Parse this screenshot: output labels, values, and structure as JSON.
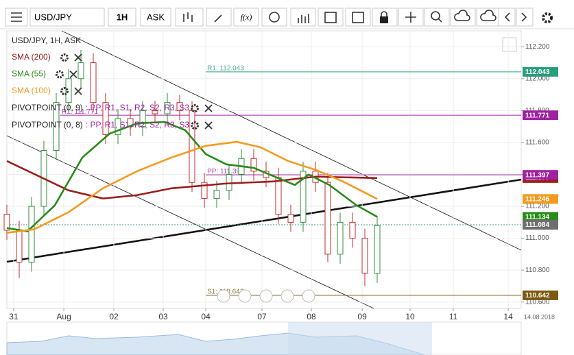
{
  "toolbar": {
    "symbol": "USD/JPY",
    "interval": "1H",
    "side": "ASK",
    "fx": "f(x)"
  },
  "chart_data": {
    "type": "candlestick",
    "title": "USD/JPY, 1H, ASK",
    "xlim": [
      0,
      250
    ],
    "xticks": [
      {
        "value": 3.3,
        "label": "31"
      },
      {
        "value": 27.7,
        "label": "Aug"
      },
      {
        "value": 52,
        "label": "02"
      },
      {
        "value": 76,
        "label": "03"
      },
      {
        "value": 96.7,
        "label": "04"
      },
      {
        "value": 124,
        "label": "07"
      },
      {
        "value": 148,
        "label": "08"
      },
      {
        "value": 172.7,
        "label": "09"
      },
      {
        "value": 196,
        "label": "10"
      },
      {
        "value": 217,
        "label": "11"
      },
      {
        "value": 243.7,
        "label": "14"
      }
    ],
    "date_label": "14.08.2018",
    "ylim": [
      110.56,
      112.3
    ],
    "yticks": [
      {
        "value": 110.6,
        "label": "110.600"
      },
      {
        "value": 110.8,
        "label": "110.800"
      },
      {
        "value": 111.0,
        "label": "111.000"
      },
      {
        "value": 111.2,
        "label": "111.200"
      },
      {
        "value": 111.4,
        "label": "111.400"
      },
      {
        "value": 111.6,
        "label": "111.600"
      },
      {
        "value": 111.8,
        "label": "111.800"
      },
      {
        "value": 112.0,
        "label": "112.000"
      },
      {
        "value": 112.2,
        "label": "112.200"
      }
    ],
    "grid": true,
    "candles": {
      "up_color": "#2e8b3a",
      "down_color": "#c62828",
      "x": [
        0,
        6,
        12,
        18,
        24,
        30,
        36,
        42,
        48,
        54,
        60,
        66,
        72,
        78,
        84,
        90,
        96,
        102,
        108,
        114,
        120,
        126,
        132,
        138,
        144,
        150,
        156,
        162,
        168,
        174,
        180
      ],
      "open": [
        111.15,
        111.05,
        110.85,
        111.2,
        111.55,
        111.85,
        112.0,
        112.1,
        111.85,
        111.65,
        111.75,
        111.7,
        111.8,
        111.78,
        111.85,
        111.8,
        111.35,
        111.25,
        111.3,
        111.4,
        111.5,
        111.42,
        111.38,
        111.15,
        111.1,
        111.42,
        111.35,
        110.9,
        111.1,
        111.0,
        110.78
      ],
      "high": [
        111.21,
        111.11,
        111.26,
        111.61,
        111.91,
        112.06,
        112.18,
        112.16,
        111.91,
        111.81,
        111.81,
        111.86,
        111.86,
        111.91,
        111.9,
        111.86,
        111.41,
        111.36,
        111.46,
        111.56,
        111.56,
        111.48,
        111.44,
        111.21,
        111.48,
        111.48,
        111.41,
        111.16,
        111.16,
        111.06,
        111.14
      ],
      "low": [
        110.99,
        110.75,
        110.79,
        111.14,
        111.49,
        111.79,
        111.94,
        111.79,
        111.59,
        111.59,
        111.64,
        111.64,
        111.72,
        111.72,
        111.74,
        111.29,
        111.19,
        111.19,
        111.24,
        111.34,
        111.36,
        111.32,
        111.09,
        111.04,
        111.04,
        111.29,
        110.85,
        110.84,
        110.94,
        110.7,
        110.72
      ],
      "close": [
        111.05,
        110.85,
        111.2,
        111.55,
        111.85,
        112.0,
        112.1,
        111.85,
        111.65,
        111.75,
        111.7,
        111.8,
        111.78,
        111.85,
        111.8,
        111.35,
        111.25,
        111.3,
        111.4,
        111.5,
        111.42,
        111.38,
        111.15,
        111.1,
        111.42,
        111.35,
        110.9,
        111.1,
        111.0,
        110.78,
        111.08
      ]
    },
    "series": [
      {
        "name": "SMA (200)",
        "color": "#9b1c1c",
        "x": [
          0,
          30,
          46.7,
          63.3,
          80,
          106.7,
          130,
          150,
          180
        ],
        "values": [
          111.484,
          111.3,
          111.249,
          111.27,
          111.313,
          111.343,
          111.356,
          111.386,
          111.377
        ]
      },
      {
        "name": "SMA (55)",
        "color": "#2a8a1a",
        "x": [
          0,
          10,
          23.3,
          36.7,
          50,
          63.3,
          76.7,
          86.7,
          96.7,
          106.7,
          120,
          133.3,
          140,
          146.7,
          156.7,
          170,
          180
        ],
        "values": [
          111.064,
          111.043,
          111.206,
          111.506,
          111.656,
          111.72,
          111.729,
          111.677,
          111.527,
          111.463,
          111.441,
          111.369,
          111.334,
          111.399,
          111.334,
          111.206,
          111.134
        ]
      },
      {
        "name": "SMA (100)",
        "color": "#f39a1e",
        "x": [
          0,
          13.3,
          30,
          46.7,
          63.3,
          80,
          96.7,
          111.7,
          123.3,
          136.7,
          150,
          163.3,
          180
        ],
        "values": [
          111.034,
          111.056,
          111.163,
          111.313,
          111.42,
          111.506,
          111.579,
          111.604,
          111.57,
          111.484,
          111.429,
          111.356,
          111.246
        ]
      }
    ],
    "levels": [
      {
        "label": "R1: 112.043",
        "value": 112.043,
        "from": 96.7,
        "color": "#2a9d7f"
      },
      {
        "label": "R1: 111.771",
        "value": 111.771,
        "from": 26,
        "color": "#a020a0"
      },
      {
        "label": "PP: 111.397",
        "value": 111.397,
        "from": 96.7,
        "color": "#a020a0"
      },
      {
        "label": "S1: 110.642",
        "value": 110.642,
        "from": 96.7,
        "color": "#7a5a10"
      }
    ],
    "last_price": {
      "value": 111.084,
      "color": "#6e6e6e"
    },
    "indicators": [
      {
        "name": "PIVOTPOINT (0, 9)",
        "lines": ": PP, R1, S1, R2, S2, R3, S3",
        "color": "#a020a0"
      },
      {
        "name": "PIVOTPOINT (0, 8)",
        "lines": ": PP, R1, S1, R2, S2, R3, S3",
        "color": "#a020a0"
      }
    ]
  }
}
